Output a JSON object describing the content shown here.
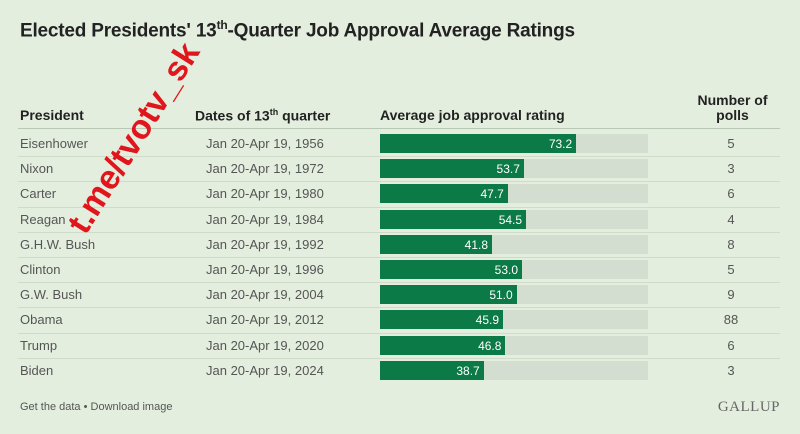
{
  "title": {
    "pre": "Elected Presidents' 13",
    "sup": "th",
    "post": "-Quarter Job Approval Average Ratings"
  },
  "headers": {
    "president": "President",
    "dates_pre": "Dates of 13",
    "dates_sup": "th",
    "dates_post": " quarter",
    "rating": "Average job approval rating",
    "polls_line1": "Number of",
    "polls_line2": "polls"
  },
  "chart_data": {
    "type": "bar",
    "orientation": "horizontal",
    "title": "Elected Presidents' 13th-Quarter Job Approval Average Ratings",
    "xlim": [
      0,
      100
    ],
    "rows": [
      {
        "president": "Eisenhower",
        "dates": "Jan 20-Apr 19, 1956",
        "rating": 73.2,
        "rating_label": "73.2",
        "polls": "5"
      },
      {
        "president": "Nixon",
        "dates": "Jan 20-Apr 19, 1972",
        "rating": 53.7,
        "rating_label": "53.7",
        "polls": "3"
      },
      {
        "president": "Carter",
        "dates": "Jan 20-Apr 19, 1980",
        "rating": 47.7,
        "rating_label": "47.7",
        "polls": "6"
      },
      {
        "president": "Reagan",
        "dates": "Jan 20-Apr 19, 1984",
        "rating": 54.5,
        "rating_label": "54.5",
        "polls": "4"
      },
      {
        "president": "G.H.W. Bush",
        "dates": "Jan 20-Apr 19, 1992",
        "rating": 41.8,
        "rating_label": "41.8",
        "polls": "8"
      },
      {
        "president": "Clinton",
        "dates": "Jan 20-Apr 19, 1996",
        "rating": 53.0,
        "rating_label": "53.0",
        "polls": "5"
      },
      {
        "president": "G.W. Bush",
        "dates": "Jan 20-Apr 19, 2004",
        "rating": 51.0,
        "rating_label": "51.0",
        "polls": "9"
      },
      {
        "president": "Obama",
        "dates": "Jan 20-Apr 19, 2012",
        "rating": 45.9,
        "rating_label": "45.9",
        "polls": "88"
      },
      {
        "president": "Trump",
        "dates": "Jan 20-Apr 19, 2020",
        "rating": 46.8,
        "rating_label": "46.8",
        "polls": "6"
      },
      {
        "president": "Biden",
        "dates": "Jan 20-Apr 19, 2024",
        "rating": 38.7,
        "rating_label": "38.7",
        "polls": "3"
      }
    ],
    "colors": {
      "bar": "#0b7a46",
      "track": "#d3ddd0",
      "background": "#e4eedf"
    }
  },
  "footer": {
    "links": "Get the data • Download image",
    "brand": "GALLUP"
  },
  "watermark": "t.me/tvotv_sk"
}
